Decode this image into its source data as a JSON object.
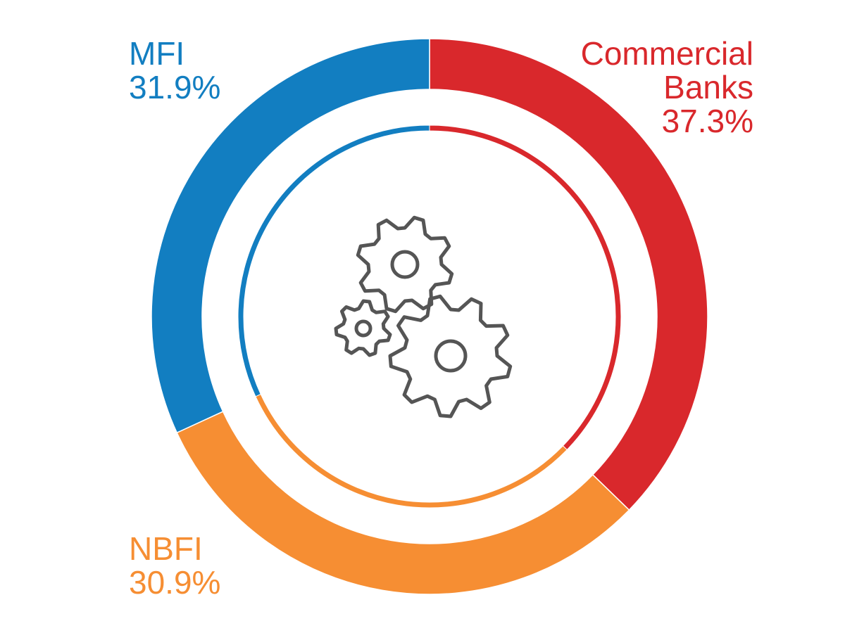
{
  "chart_data": {
    "type": "donut",
    "categories": [
      "Commercial Banks",
      "NBFI",
      "MFI"
    ],
    "values": [
      37.3,
      30.9,
      31.9
    ],
    "value_labels": [
      "37.3%",
      "30.9%",
      "31.9%"
    ],
    "colors": [
      "#d9282c",
      "#f68e33",
      "#127ec1"
    ]
  }
}
